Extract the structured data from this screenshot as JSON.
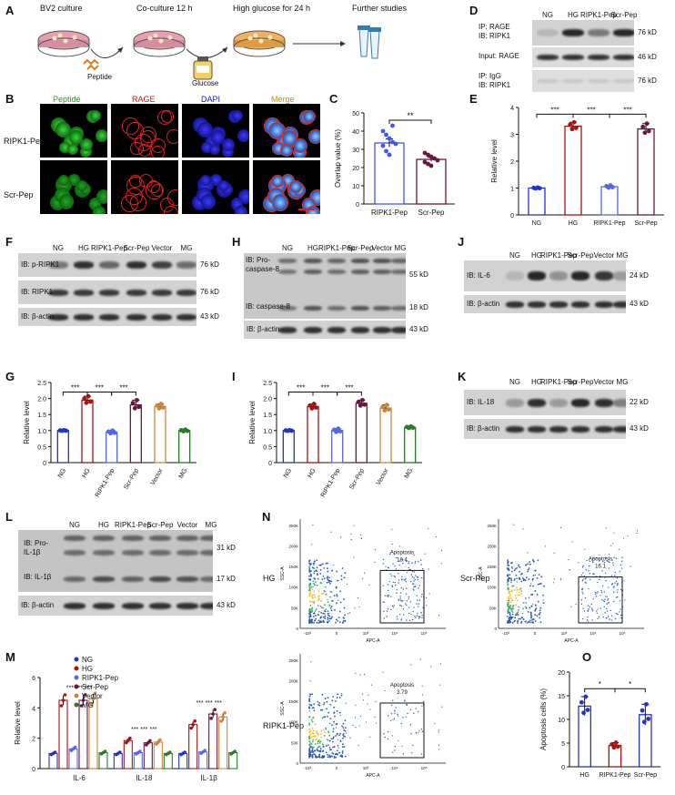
{
  "panels": {
    "A": {
      "letter": "A",
      "steps": [
        "BV2 culture",
        "Co-culture 12 h",
        "High glucose for 24 h",
        "Further studies"
      ],
      "reagents": [
        "Peptide",
        "Glucose"
      ]
    },
    "B": {
      "letter": "B",
      "columns": [
        "Peptide",
        "RAGE",
        "DAPI",
        "Merge"
      ],
      "rows": [
        "RIPK1-Pep",
        "Scr-Pep"
      ]
    },
    "C": {
      "letter": "C",
      "ylabel": "Overlap value (%)",
      "sig": "**",
      "chart_data": {
        "type": "scatter",
        "categories": [
          "RIPK1-Pep",
          "Scr-Pep"
        ],
        "values": [
          33.5,
          24.5
        ],
        "errors": [
          2.2,
          1.2
        ],
        "points": [
          [
            40,
            38,
            36,
            34,
            33,
            32,
            29,
            27,
            43
          ],
          [
            28,
            27,
            26,
            25,
            24,
            23,
            22,
            21
          ]
        ],
        "ylim": [
          0,
          50
        ],
        "yticks": [
          "0",
          "10",
          "20",
          "30",
          "40",
          "50"
        ]
      }
    },
    "D": {
      "letter": "D",
      "lanes": [
        "NG",
        "HG",
        "RIPK1-Pep",
        "Scr-Pep"
      ],
      "rows": [
        {
          "label": "IP: RAGE\nIB: RIPK1",
          "kd": "76 kD"
        },
        {
          "label": "Input: RAGE",
          "kd": "46 kD"
        },
        {
          "label": "IP: IgG\nIB: RIPK1",
          "kd": "76 kD"
        }
      ]
    },
    "E": {
      "letter": "E",
      "ylabel": "Relative level",
      "sigs": [
        "***",
        "***",
        "***"
      ],
      "chart_data": {
        "type": "bar",
        "categories": [
          "NG",
          "HG",
          "RIPK1-Pep",
          "Scr-Pep"
        ],
        "values": [
          1.0,
          3.3,
          1.05,
          3.2
        ],
        "errors": [
          0.02,
          0.15,
          0.05,
          0.2
        ],
        "ylim": [
          0,
          4
        ],
        "yticks": [
          "0",
          "1",
          "2",
          "3",
          "4"
        ]
      }
    },
    "F": {
      "letter": "F",
      "lanes": [
        "NG",
        "HG",
        "RIPK1-Pep",
        "Scr-Pep",
        "Vector",
        "MG"
      ],
      "rows": [
        {
          "label": "IB: p-RIPK1",
          "kd": "76 kD"
        },
        {
          "label": "IB: RIPK1",
          "kd": "76 kD"
        },
        {
          "label": "IB: β-actin",
          "kd": "43 kD"
        }
      ]
    },
    "G": {
      "letter": "G",
      "ylabel": "Relative level",
      "sigs": [
        "***",
        "***",
        "***"
      ],
      "chart_data": {
        "type": "bar",
        "categories": [
          "NG",
          "HG",
          "RIPK1-Pep",
          "Scr-Pep",
          "Vector",
          "MG"
        ],
        "values": [
          1.0,
          1.95,
          0.95,
          1.8,
          1.75,
          1.0
        ],
        "errors": [
          0.01,
          0.12,
          0.05,
          0.15,
          0.08,
          0.03
        ],
        "ylim": [
          0,
          2.5
        ],
        "yticks": [
          "0",
          "0.5",
          "1.0",
          "1.5",
          "2.0",
          "2.5"
        ]
      }
    },
    "H": {
      "letter": "H",
      "lanes": [
        "NG",
        "HG",
        "RIPK1-Pep",
        "Scr-Pep",
        "Vector",
        "MG"
      ],
      "rows": [
        {
          "label": "IB: Pro-\ncaspase-8",
          "kd": "55 kD"
        },
        {
          "label": "IB: caspase-8",
          "kd": "18 kD"
        },
        {
          "label": "IB: β-actin",
          "kd": "43 kD"
        }
      ]
    },
    "I": {
      "letter": "I",
      "ylabel": "Relative level",
      "sigs": [
        "***",
        "***",
        "***"
      ],
      "chart_data": {
        "type": "bar",
        "categories": [
          "NG",
          "HG",
          "RIPK1-Pep",
          "Scr-Pep",
          "Vector",
          "MG"
        ],
        "values": [
          1.0,
          1.75,
          1.0,
          1.85,
          1.7,
          1.1
        ],
        "errors": [
          0.01,
          0.08,
          0.06,
          0.1,
          0.1,
          0.03
        ],
        "ylim": [
          0,
          2.5
        ],
        "yticks": [
          "0",
          "0.5",
          "1.0",
          "1.5",
          "2.0",
          "2.5"
        ]
      }
    },
    "J": {
      "letter": "J",
      "lanes": [
        "NG",
        "HG",
        "RIPK1-Pep",
        "Scr-Pep",
        "Vector",
        "MG"
      ],
      "rows": [
        {
          "label": "IB: IL-6",
          "kd": "24 kD"
        },
        {
          "label": "IB: β-actin",
          "kd": "43 kD"
        }
      ]
    },
    "K": {
      "letter": "K",
      "lanes": [
        "NG",
        "HG",
        "RIPK1-Pep",
        "Scr-Pep",
        "Vector",
        "MG"
      ],
      "rows": [
        {
          "label": "IB: IL-18",
          "kd": "22 kD"
        },
        {
          "label": "IB: β-actin",
          "kd": "43 kD"
        }
      ]
    },
    "L": {
      "letter": "L",
      "lanes": [
        "NG",
        "HG",
        "RIPK1-Pep",
        "Scr-Pep",
        "Vector",
        "MG"
      ],
      "rows": [
        {
          "label": "IB: Pro-\nIL-1β",
          "kd": "31 kD"
        },
        {
          "label": "IB: IL-1β",
          "kd": "17 kD"
        },
        {
          "label": "IB: β-actin",
          "kd": "43 kD"
        }
      ]
    },
    "M": {
      "letter": "M",
      "ylabel": "Relative level",
      "sig_groups": [
        "*** *** ***",
        "*** *** ***",
        "*** *** ***"
      ],
      "chart_data": {
        "type": "bar",
        "categories": [
          "IL-6",
          "IL-18",
          "IL-1β"
        ],
        "series": [
          {
            "name": "NG",
            "values": [
              1.0,
              1.0,
              1.0
            ]
          },
          {
            "name": "HG",
            "values": [
              4.5,
              1.85,
              2.9
            ]
          },
          {
            "name": "RIPK1-Pep",
            "values": [
              1.3,
              1.05,
              1.1
            ]
          },
          {
            "name": "Scr-Pep",
            "values": [
              4.5,
              1.7,
              3.6
            ]
          },
          {
            "name": "Vector",
            "values": [
              4.6,
              1.75,
              3.4
            ]
          },
          {
            "name": "MG",
            "values": [
              1.05,
              1.0,
              1.05
            ]
          }
        ],
        "colors": [
          "#2233cc",
          "#aa1111",
          "#5566ee",
          "#6a1540",
          "#c8873a",
          "#2a7a2a"
        ],
        "ylim": [
          0,
          6
        ],
        "yticks": [
          "0",
          "2",
          "4",
          "6"
        ]
      }
    },
    "N": {
      "letter": "N",
      "plots": [
        {
          "row_label": "HG",
          "gate": "Apoptosis",
          "value": "18.4"
        },
        {
          "row_label": "Scr-Pep",
          "gate": "Apoptosis",
          "value": "16.1"
        },
        {
          "row_label": "RIPK1-Pep",
          "gate": "Apoptosis",
          "value": "3.79"
        }
      ],
      "yaxis": "SSC-A",
      "xaxis": "APC-A",
      "yticks": [
        "0",
        "50K",
        "100K",
        "150K",
        "200K",
        "250K"
      ],
      "xticks": [
        "-10³",
        "0",
        "10³",
        "10⁴",
        "10⁵"
      ]
    },
    "O": {
      "letter": "O",
      "ylabel": "Apoptosis cells (%)",
      "sigs": [
        "*",
        "*"
      ],
      "chart_data": {
        "type": "bar",
        "categories": [
          "HG",
          "RIPK1-Pep",
          "Scr-Pep"
        ],
        "values": [
          12.8,
          4.5,
          11.0
        ],
        "errors": [
          2.0,
          0.6,
          2.2
        ],
        "ylim": [
          0,
          20
        ],
        "yticks": [
          "0",
          "5",
          "10",
          "15",
          "20"
        ]
      }
    }
  }
}
